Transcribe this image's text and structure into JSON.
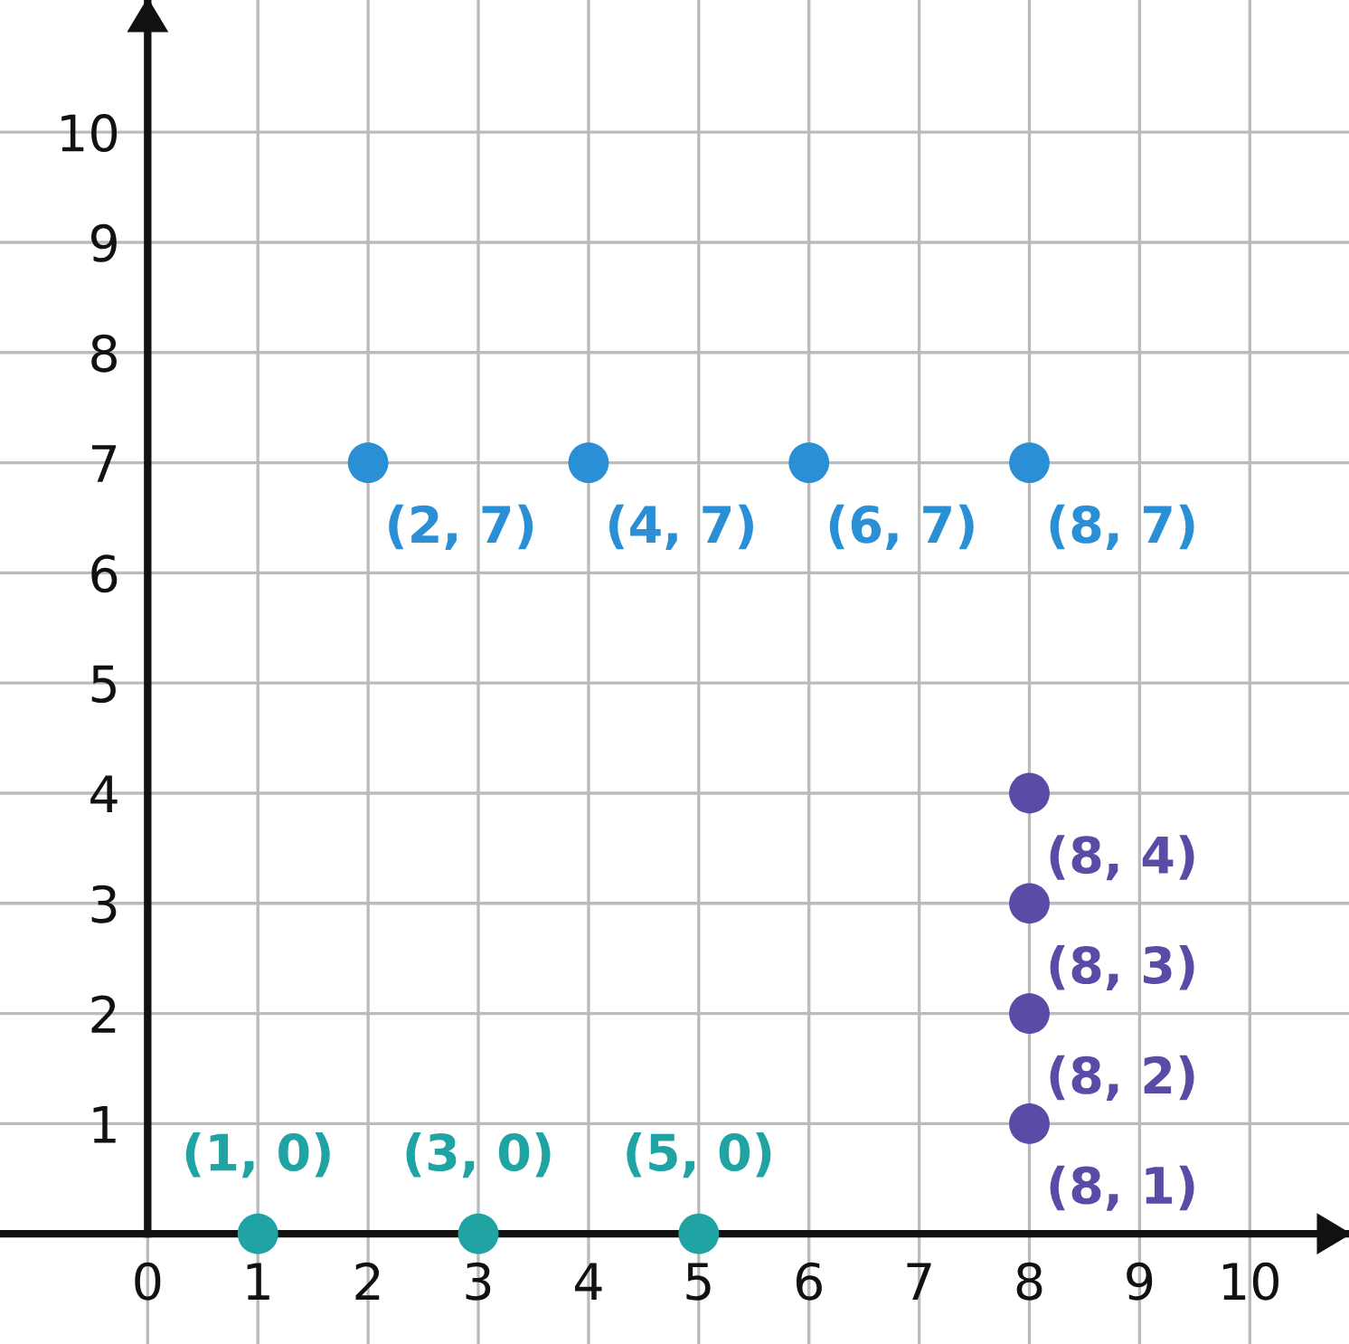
{
  "chart_data": {
    "type": "scatter",
    "xlim": [
      -1.34,
      10.9
    ],
    "ylim": [
      -1.0,
      11.2
    ],
    "xticks": [
      0,
      1,
      2,
      3,
      4,
      5,
      6,
      7,
      8,
      9,
      10
    ],
    "yticks": [
      1,
      2,
      3,
      4,
      5,
      6,
      7,
      8,
      9,
      10
    ],
    "grid": true,
    "marker": "circle",
    "series": [
      {
        "color": "#2b8fd6",
        "x": [
          2,
          4,
          6,
          8
        ],
        "values": [
          7,
          7,
          7,
          7
        ],
        "value_labels": [
          "(2, 7)",
          "(4, 7)",
          "(6, 7)",
          "(8, 7)"
        ]
      },
      {
        "color": "#5b4aa6",
        "x": [
          8,
          8,
          8,
          8
        ],
        "values": [
          4,
          3,
          2,
          1
        ],
        "value_labels": [
          "(8, 4)",
          "(8, 3)",
          "(8, 2)",
          "(8, 1)"
        ]
      },
      {
        "color": "#1fa3a3",
        "x": [
          1,
          3,
          5
        ],
        "values": [
          0,
          0,
          0
        ],
        "value_labels": [
          "(1, 0)",
          "(3, 0)",
          "(5, 0)"
        ]
      }
    ]
  }
}
